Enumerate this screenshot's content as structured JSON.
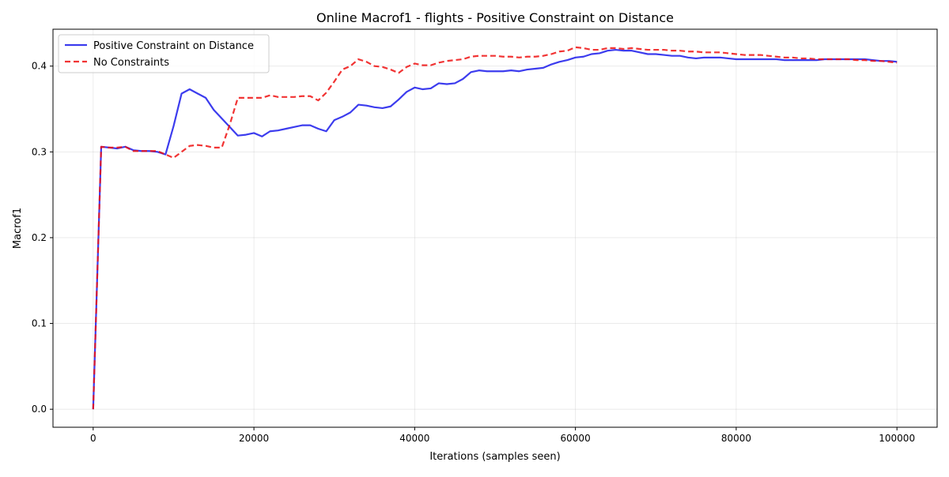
{
  "chart_data": {
    "type": "line",
    "title": "Online Macrof1 - flights - Positive Constraint on Distance",
    "xlabel": "Iterations (samples seen)",
    "ylabel": "Macrof1",
    "xlim": [
      -5000,
      105000
    ],
    "ylim": [
      -0.021,
      0.443
    ],
    "xticks": [
      0,
      20000,
      40000,
      60000,
      80000,
      100000
    ],
    "yticks": [
      0.0,
      0.1,
      0.2,
      0.3,
      0.4
    ],
    "xtick_labels": [
      "0",
      "20000",
      "40000",
      "60000",
      "80000",
      "100000"
    ],
    "ytick_labels": [
      "0.0",
      "0.1",
      "0.2",
      "0.3",
      "0.4"
    ],
    "grid": true,
    "legend_position": "upper-left",
    "series": [
      {
        "name": "Positive Constraint on Distance",
        "color": "#1a1aeb",
        "style": "solid",
        "x": [
          0,
          1000,
          2000,
          3000,
          4000,
          5000,
          6000,
          7000,
          8000,
          9000,
          10000,
          11000,
          12000,
          13000,
          14000,
          15000,
          16000,
          17000,
          18000,
          19000,
          20000,
          21000,
          22000,
          23000,
          24000,
          25000,
          26000,
          27000,
          28000,
          29000,
          30000,
          31000,
          32000,
          33000,
          34000,
          35000,
          36000,
          37000,
          38000,
          39000,
          40000,
          41000,
          42000,
          43000,
          44000,
          45000,
          46000,
          47000,
          48000,
          49000,
          50000,
          51000,
          52000,
          53000,
          54000,
          55000,
          56000,
          57000,
          58000,
          59000,
          60000,
          61000,
          62000,
          63000,
          64000,
          65000,
          66000,
          67000,
          68000,
          69000,
          70000,
          71000,
          72000,
          73000,
          74000,
          75000,
          76000,
          77000,
          78000,
          79000,
          80000,
          81000,
          82000,
          83000,
          84000,
          85000,
          86000,
          87000,
          88000,
          89000,
          90000,
          91000,
          92000,
          93000,
          94000,
          95000,
          96000,
          97000,
          98000,
          99000,
          100000
        ],
        "y": [
          0.0,
          0.306,
          0.305,
          0.304,
          0.306,
          0.302,
          0.301,
          0.301,
          0.3,
          0.297,
          0.33,
          0.368,
          0.373,
          0.368,
          0.363,
          0.349,
          0.339,
          0.329,
          0.319,
          0.32,
          0.322,
          0.318,
          0.324,
          0.325,
          0.327,
          0.329,
          0.331,
          0.331,
          0.327,
          0.324,
          0.337,
          0.341,
          0.346,
          0.355,
          0.354,
          0.352,
          0.351,
          0.353,
          0.361,
          0.37,
          0.375,
          0.373,
          0.374,
          0.38,
          0.379,
          0.38,
          0.385,
          0.393,
          0.395,
          0.394,
          0.394,
          0.394,
          0.395,
          0.394,
          0.396,
          0.397,
          0.398,
          0.402,
          0.405,
          0.407,
          0.41,
          0.411,
          0.414,
          0.415,
          0.418,
          0.419,
          0.418,
          0.418,
          0.416,
          0.414,
          0.414,
          0.413,
          0.412,
          0.412,
          0.41,
          0.409,
          0.41,
          0.41,
          0.41,
          0.409,
          0.408,
          0.408,
          0.408,
          0.408,
          0.408,
          0.408,
          0.407,
          0.407,
          0.407,
          0.407,
          0.407,
          0.408,
          0.408,
          0.408,
          0.408,
          0.408,
          0.408,
          0.407,
          0.406,
          0.406,
          0.405
        ]
      },
      {
        "name": "No Constraints",
        "color": "#ee1111",
        "style": "dashed",
        "x": [
          0,
          1000,
          2000,
          3000,
          4000,
          5000,
          6000,
          7000,
          8000,
          9000,
          10000,
          11000,
          12000,
          13000,
          14000,
          15000,
          16000,
          17000,
          18000,
          19000,
          20000,
          21000,
          22000,
          23000,
          24000,
          25000,
          26000,
          27000,
          28000,
          29000,
          30000,
          31000,
          32000,
          33000,
          34000,
          35000,
          36000,
          37000,
          38000,
          39000,
          40000,
          41000,
          42000,
          43000,
          44000,
          45000,
          46000,
          47000,
          48000,
          49000,
          50000,
          51000,
          52000,
          53000,
          54000,
          55000,
          56000,
          57000,
          58000,
          59000,
          60000,
          61000,
          62000,
          63000,
          64000,
          65000,
          66000,
          67000,
          68000,
          69000,
          70000,
          71000,
          72000,
          73000,
          74000,
          75000,
          76000,
          77000,
          78000,
          79000,
          80000,
          81000,
          82000,
          83000,
          84000,
          85000,
          86000,
          87000,
          88000,
          89000,
          90000,
          91000,
          92000,
          93000,
          94000,
          95000,
          96000,
          97000,
          98000,
          99000,
          100000
        ],
        "y": [
          0.0,
          0.306,
          0.305,
          0.305,
          0.306,
          0.301,
          0.301,
          0.301,
          0.301,
          0.297,
          0.293,
          0.3,
          0.307,
          0.308,
          0.307,
          0.305,
          0.305,
          0.332,
          0.363,
          0.363,
          0.363,
          0.363,
          0.366,
          0.364,
          0.364,
          0.364,
          0.365,
          0.365,
          0.36,
          0.369,
          0.382,
          0.396,
          0.4,
          0.408,
          0.405,
          0.4,
          0.399,
          0.396,
          0.392,
          0.399,
          0.403,
          0.401,
          0.401,
          0.404,
          0.406,
          0.407,
          0.408,
          0.411,
          0.412,
          0.412,
          0.412,
          0.411,
          0.411,
          0.41,
          0.411,
          0.411,
          0.412,
          0.414,
          0.417,
          0.418,
          0.422,
          0.421,
          0.419,
          0.419,
          0.421,
          0.421,
          0.42,
          0.421,
          0.42,
          0.419,
          0.419,
          0.419,
          0.418,
          0.418,
          0.417,
          0.417,
          0.416,
          0.416,
          0.416,
          0.415,
          0.414,
          0.413,
          0.413,
          0.413,
          0.412,
          0.411,
          0.41,
          0.41,
          0.409,
          0.409,
          0.408,
          0.408,
          0.408,
          0.408,
          0.408,
          0.407,
          0.407,
          0.406,
          0.406,
          0.405,
          0.404
        ]
      }
    ]
  }
}
